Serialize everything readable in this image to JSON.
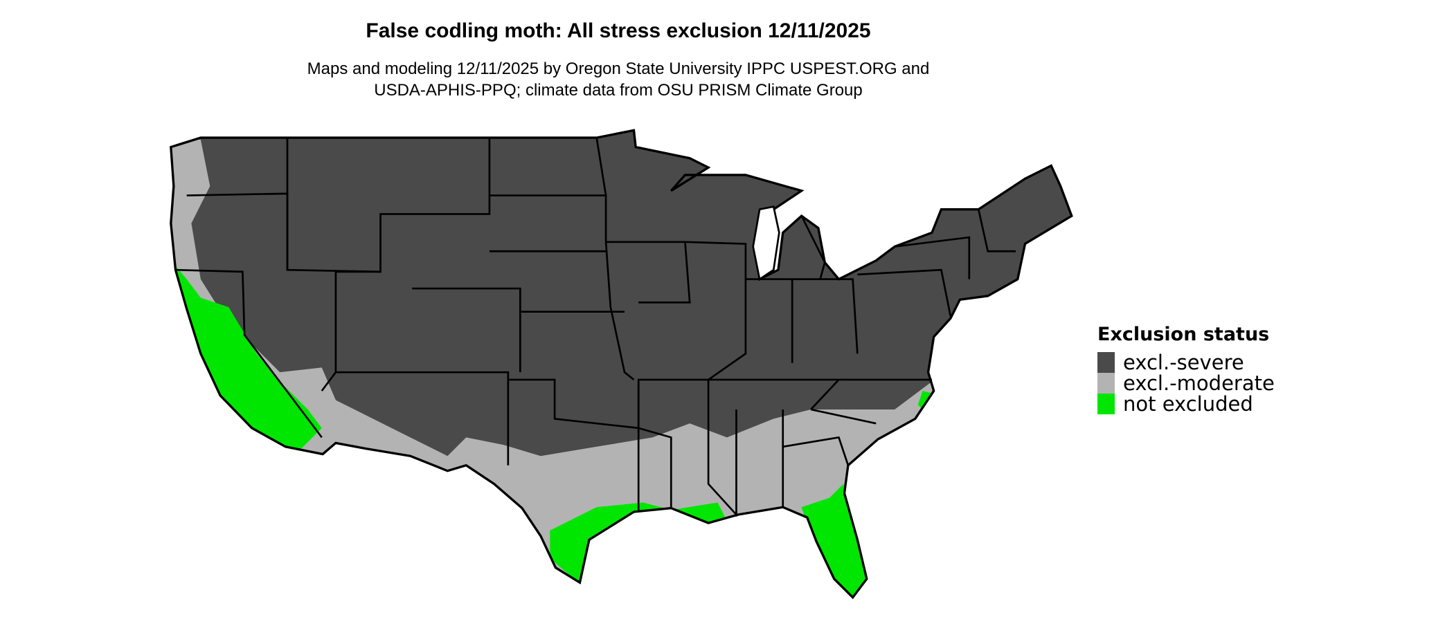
{
  "title": "False codling moth: All stress exclusion 12/11/2025",
  "subtitle_lines": [
    "Maps and modeling 12/11/2025 by Oregon State University IPPC USPEST.ORG and",
    "USDA-APHIS-PPQ; climate data from OSU PRISM Climate Group"
  ],
  "legend": {
    "title": "Exclusion status",
    "items": [
      {
        "label": "excl.-severe",
        "color": "#4a4a4a"
      },
      {
        "label": "excl.-moderate",
        "color": "#b3b3b3"
      },
      {
        "label": "not excluded",
        "color": "#00e600"
      }
    ]
  },
  "map": {
    "region": "Contiguous United States",
    "border_color": "#000000",
    "background": "#ffffff"
  }
}
